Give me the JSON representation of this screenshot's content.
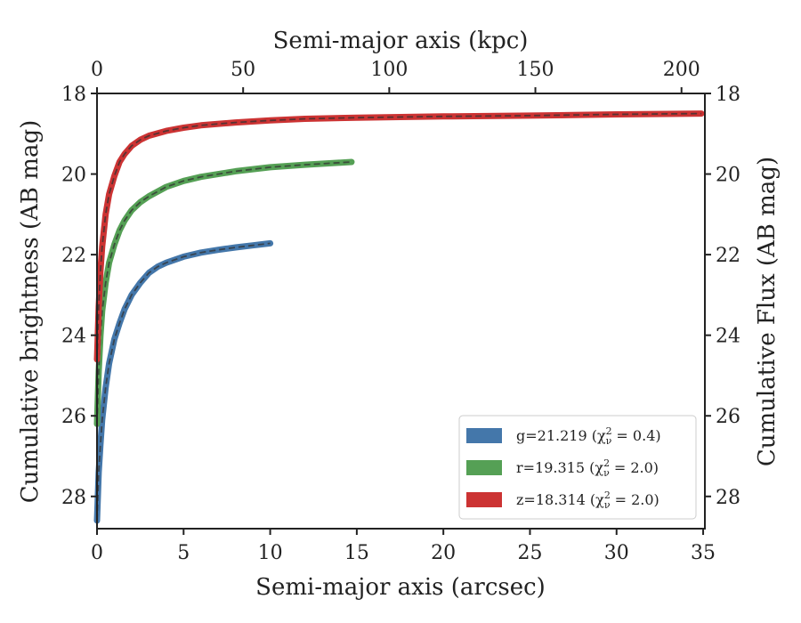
{
  "chart_data": {
    "type": "line",
    "xlabel": "Semi-major axis (arcsec)",
    "x2label": "Semi-major axis (kpc)",
    "ylabel": "Cumulative brightness (AB mag)",
    "y2label": "Cumulative Flux (AB mag)",
    "xlim": [
      0,
      35.1
    ],
    "ylim": [
      28.8,
      18.0
    ],
    "x2lim": [
      0,
      208
    ],
    "x_ticks": [
      "0",
      "5",
      "10",
      "15",
      "20",
      "25",
      "30",
      "35"
    ],
    "x2_ticks": [
      "0",
      "50",
      "100",
      "150",
      "200"
    ],
    "y_ticks": [
      "18",
      "20",
      "22",
      "24",
      "26",
      "28"
    ],
    "y2_ticks": [
      "18",
      "20",
      "22",
      "24",
      "26",
      "28"
    ],
    "legend_position": "lower right",
    "series": [
      {
        "name": "g=21.219",
        "chi_label": "(χ",
        "chi_sub": "ν",
        "chi_sup": "2",
        "chi_value": " = 0.4)",
        "color": "#4477aa",
        "x": [
          0.0,
          0.1,
          0.2,
          0.3,
          0.5,
          0.7,
          1.0,
          1.3,
          1.6,
          2.0,
          2.5,
          3.0,
          3.5,
          4.0,
          5.0,
          6.0,
          7.0,
          8.0,
          9.0,
          10.0
        ],
        "y": [
          28.6,
          27.4,
          26.7,
          26.1,
          25.3,
          24.7,
          24.1,
          23.7,
          23.35,
          23.0,
          22.7,
          22.45,
          22.3,
          22.2,
          22.05,
          21.95,
          21.88,
          21.82,
          21.77,
          21.72
        ]
      },
      {
        "name": "r=19.315",
        "chi_label": "(χ",
        "chi_sub": "ν",
        "chi_sup": "2",
        "chi_value": " = 2.0)",
        "color": "#55a055",
        "x": [
          0.0,
          0.1,
          0.2,
          0.3,
          0.5,
          0.7,
          1.0,
          1.3,
          1.6,
          2.0,
          2.5,
          3.0,
          4.0,
          5.0,
          6.0,
          7.0,
          8.0,
          10.0,
          12.0,
          14.7
        ],
        "y": [
          26.2,
          24.9,
          24.0,
          23.4,
          22.7,
          22.2,
          21.75,
          21.4,
          21.15,
          20.9,
          20.7,
          20.55,
          20.32,
          20.17,
          20.07,
          20.0,
          19.93,
          19.83,
          19.77,
          19.7
        ]
      },
      {
        "name": "z=18.314",
        "chi_label": "(χ",
        "chi_sub": "ν",
        "chi_sup": "2",
        "chi_value": " = 2.0)",
        "color": "#cc3333",
        "x": [
          0.0,
          0.1,
          0.2,
          0.3,
          0.5,
          0.7,
          1.0,
          1.3,
          1.6,
          2.0,
          2.5,
          3.0,
          4.0,
          5.0,
          6.0,
          8.0,
          10.0,
          12.0,
          15.0,
          20.0,
          25.0,
          30.0,
          34.9
        ],
        "y": [
          24.6,
          23.3,
          22.4,
          21.8,
          21.0,
          20.5,
          20.05,
          19.7,
          19.5,
          19.3,
          19.15,
          19.05,
          18.93,
          18.85,
          18.79,
          18.72,
          18.67,
          18.63,
          18.6,
          18.57,
          18.55,
          18.52,
          18.5
        ]
      }
    ]
  }
}
